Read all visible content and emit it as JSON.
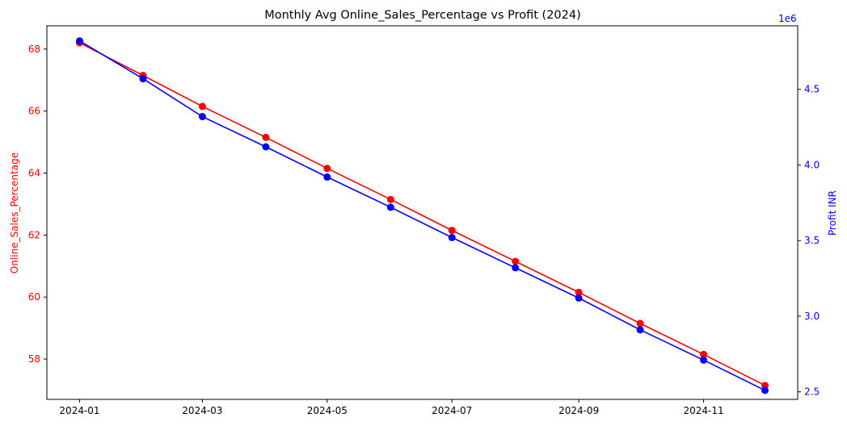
{
  "chart_data": {
    "type": "line",
    "title": "Monthly Avg Online_Sales_Percentage vs Profit (2024)",
    "x": [
      "2024-01-01",
      "2024-02-01",
      "2024-03-01",
      "2024-04-01",
      "2024-05-01",
      "2024-06-01",
      "2024-07-01",
      "2024-08-01",
      "2024-09-01",
      "2024-10-01",
      "2024-11-01",
      "2024-12-01"
    ],
    "x_ticks": [
      "2024-01",
      "2024-03",
      "2024-05",
      "2024-07",
      "2024-09",
      "2024-11"
    ],
    "xlim": [
      "2023-12-16",
      "2024-12-17"
    ],
    "y_left": {
      "label": "Online_Sales_Percentage",
      "ticks": [
        "58",
        "60",
        "62",
        "64",
        "66",
        "68"
      ],
      "ylim": [
        56.7,
        68.75
      ],
      "color": "#ff0000"
    },
    "y_right": {
      "label": "Profit INR",
      "offset_text": "1e6",
      "ticks": [
        "2.5",
        "3.0",
        "3.5",
        "4.0",
        "4.5"
      ],
      "ylim": [
        2.45,
        4.92
      ],
      "scale": 1000000,
      "color": "#0000ff"
    },
    "series": [
      {
        "axis": "left",
        "color": "#ff0000",
        "values": [
          68.2,
          67.15,
          66.15,
          65.15,
          64.15,
          63.15,
          62.15,
          61.15,
          60.15,
          59.15,
          58.15,
          57.15
        ]
      },
      {
        "axis": "right",
        "color": "#0000ff",
        "values": [
          4.82,
          4.57,
          4.32,
          4.12,
          3.92,
          3.72,
          3.52,
          3.32,
          3.12,
          2.91,
          2.71,
          2.51
        ]
      }
    ],
    "grid": false,
    "legend": "none"
  }
}
